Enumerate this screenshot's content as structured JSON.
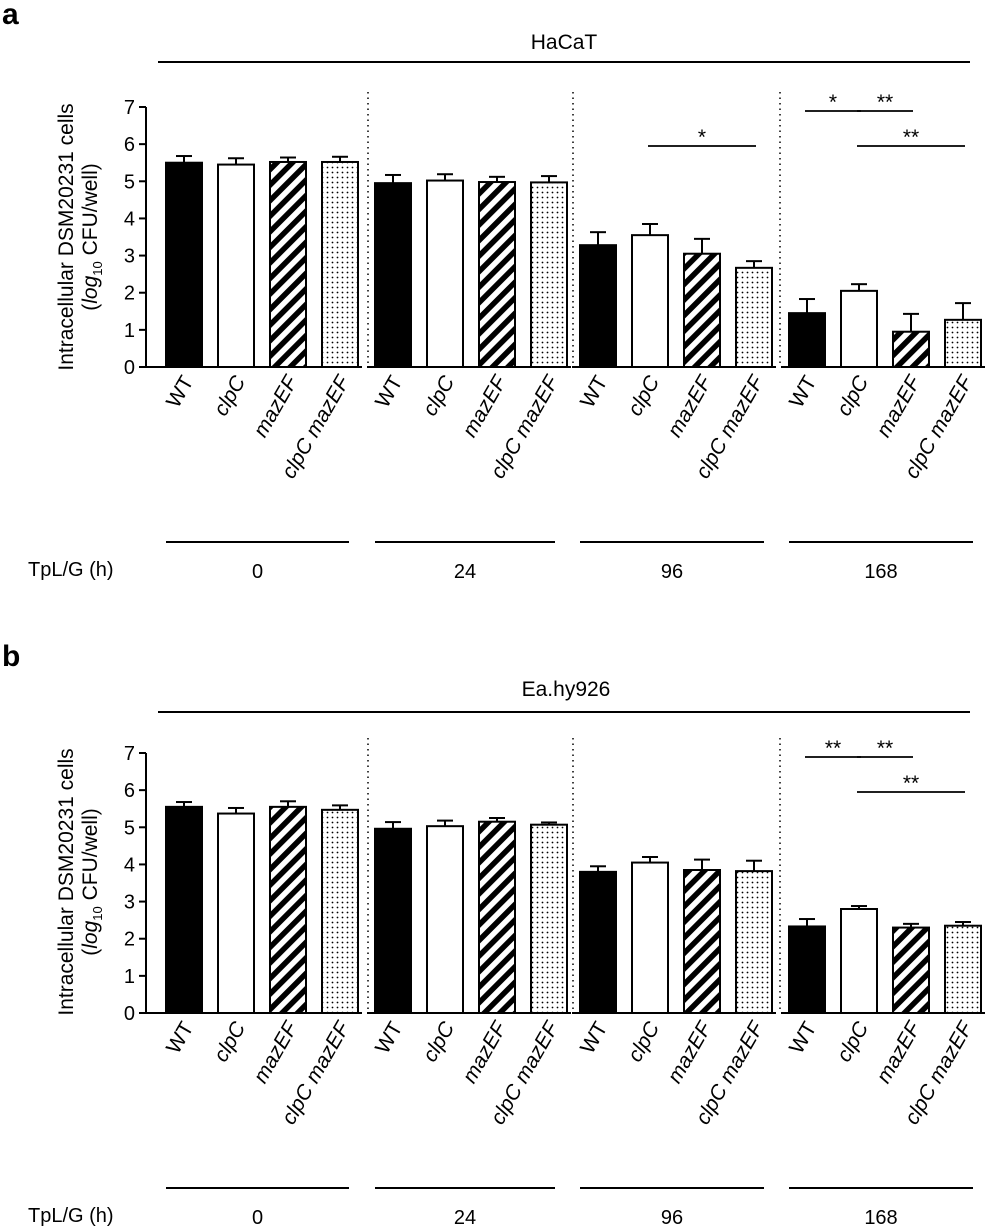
{
  "panels": [
    {
      "letter": "a",
      "cell_line": "HaCaT",
      "ylabel_line1": "Intracellular DSM20231 cells",
      "ylabel_line2_open": "(",
      "ylabel_line2_log": "log",
      "ylabel_line2_sub": "10",
      "ylabel_line2_rest": " CFU/well)",
      "time_label": "TpL/G (h)"
    },
    {
      "letter": "b",
      "cell_line": "Ea.hy926",
      "ylabel_line1": "Intracellular DSM20231 cells",
      "ylabel_line2_open": "(",
      "ylabel_line2_log": "log",
      "ylabel_line2_sub": "10",
      "ylabel_line2_rest": " CFU/well)",
      "time_label": "TpL/G (h)"
    }
  ],
  "legend_styles": {
    "WT": "#000000",
    "clpC": "#ffffff",
    "mazEF": "diagonal-stripes",
    "clpC mazEF": "dots"
  },
  "chart_data": [
    {
      "type": "bar",
      "panel": "a",
      "title": "HaCaT",
      "ylim": [
        0,
        7
      ],
      "yticks": [
        0,
        1,
        2,
        3,
        4,
        5,
        6,
        7
      ],
      "strains": [
        "WT",
        "clpC",
        "mazEF",
        "clpC mazEF"
      ],
      "groups": [
        "0",
        "24",
        "96",
        "168"
      ],
      "group_axis_label": "TpL/G (h)",
      "values": [
        [
          5.5,
          5.45,
          5.52,
          5.52
        ],
        [
          4.95,
          5.02,
          4.98,
          4.97
        ],
        [
          3.28,
          3.55,
          3.05,
          2.67
        ],
        [
          1.45,
          2.05,
          0.95,
          1.27
        ]
      ],
      "errors": [
        [
          0.18,
          0.17,
          0.12,
          0.14
        ],
        [
          0.22,
          0.17,
          0.14,
          0.17
        ],
        [
          0.35,
          0.3,
          0.4,
          0.18
        ],
        [
          0.38,
          0.18,
          0.48,
          0.45
        ]
      ],
      "significance": [
        {
          "group": 2,
          "from": 1,
          "to": 3,
          "label": "*"
        },
        {
          "group": 3,
          "from": 0,
          "to": 1,
          "label": "*"
        },
        {
          "group": 3,
          "from": 1,
          "to": 2,
          "label": "**"
        },
        {
          "group": 3,
          "from": 1,
          "to": 3,
          "label": "**"
        }
      ]
    },
    {
      "type": "bar",
      "panel": "b",
      "title": "Ea.hy926",
      "ylim": [
        0,
        7
      ],
      "yticks": [
        0,
        1,
        2,
        3,
        4,
        5,
        6,
        7
      ],
      "strains": [
        "WT",
        "clpC",
        "mazEF",
        "clpC mazEF"
      ],
      "groups": [
        "0",
        "24",
        "96",
        "168"
      ],
      "group_axis_label": "TpL/G (h)",
      "values": [
        [
          5.55,
          5.37,
          5.55,
          5.47
        ],
        [
          4.96,
          5.03,
          5.15,
          5.07
        ],
        [
          3.8,
          4.05,
          3.85,
          3.82
        ],
        [
          2.33,
          2.8,
          2.3,
          2.35
        ]
      ],
      "errors": [
        [
          0.13,
          0.15,
          0.15,
          0.12
        ],
        [
          0.18,
          0.15,
          0.1,
          0.06
        ],
        [
          0.15,
          0.15,
          0.28,
          0.28
        ],
        [
          0.2,
          0.08,
          0.1,
          0.1
        ]
      ],
      "significance": [
        {
          "group": 3,
          "from": 0,
          "to": 1,
          "label": "**"
        },
        {
          "group": 3,
          "from": 1,
          "to": 2,
          "label": "**"
        },
        {
          "group": 3,
          "from": 1,
          "to": 3,
          "label": "**"
        }
      ]
    }
  ]
}
